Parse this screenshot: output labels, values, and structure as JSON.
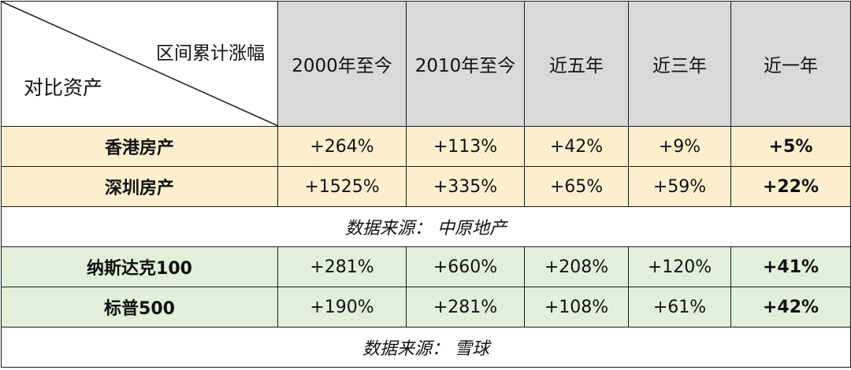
{
  "header": {
    "corner_top": "区间累计涨幅",
    "corner_bottom": "对比资产",
    "columns": [
      "2000年至今",
      "2010年至今",
      "近五年",
      "近三年",
      "近一年"
    ]
  },
  "sections": [
    {
      "rows": [
        {
          "name": "香港房产",
          "values": [
            "+264%",
            "+113%",
            "+42%",
            "+9%",
            "+5%"
          ]
        },
        {
          "name": "深圳房产",
          "values": [
            "+1525%",
            "+335%",
            "+65%",
            "+59%",
            "+22%"
          ]
        }
      ],
      "source": "数据来源： 中原地产"
    },
    {
      "rows": [
        {
          "name": "纳斯达克100",
          "values": [
            "+281%",
            "+660%",
            "+208%",
            "+120%",
            "+41%"
          ]
        },
        {
          "name": "标普500",
          "values": [
            "+190%",
            "+281%",
            "+108%",
            "+61%",
            "+42%"
          ]
        }
      ],
      "source": "数据来源： 雪球"
    }
  ]
}
